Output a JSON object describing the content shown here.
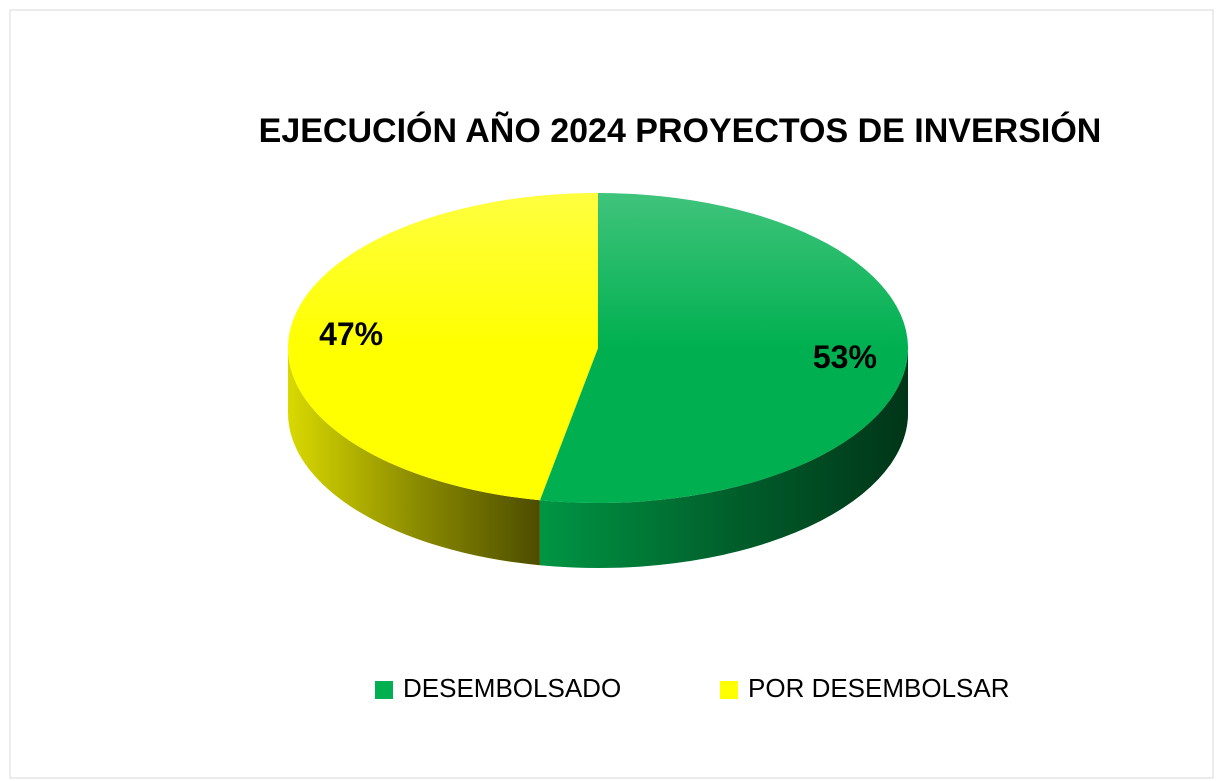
{
  "chart_data": {
    "type": "pie",
    "title": "EJECUCIÓN AÑO 2024 PROYECTOS DE INVERSIÓN",
    "categories": [
      "DESEMBOLSADO",
      "POR DESEMBOLSAR"
    ],
    "values": [
      53,
      47
    ],
    "value_labels": [
      "53%",
      "47%"
    ],
    "colors": [
      "#00b050",
      "#ffff00"
    ],
    "legend": "bottom"
  }
}
